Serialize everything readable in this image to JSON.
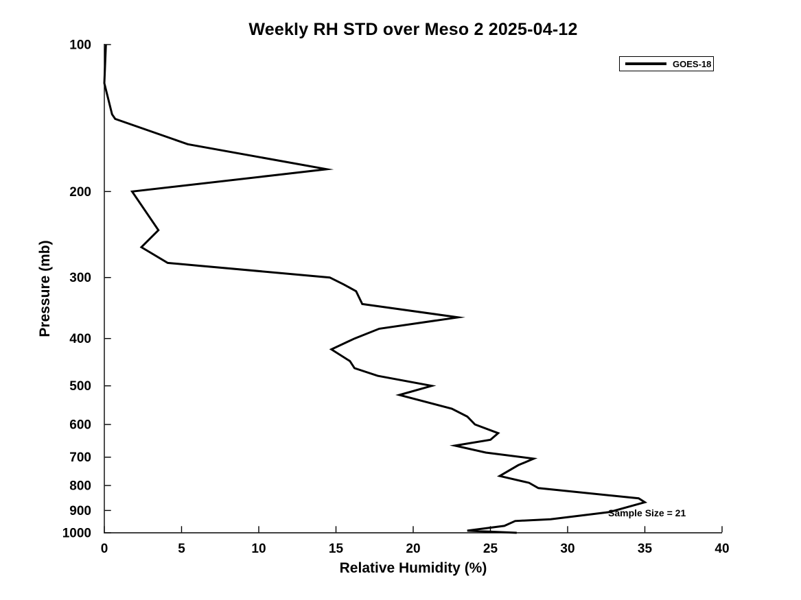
{
  "figure": {
    "title": "Weekly RH STD over Meso 2 2025-04-12",
    "xlabel": "Relative Humidity (%)",
    "ylabel": "Pressure (mb)",
    "annotation": "Sample Size = 21",
    "legend": {
      "label": "GOES-18"
    },
    "colors": {
      "line": "#000000",
      "axis": "#000000",
      "text": "#000000",
      "background": "#ffffff"
    }
  },
  "chart_data": {
    "type": "line",
    "title": "Weekly RH STD over Meso 2 2025-04-12",
    "xlabel": "Relative Humidity (%)",
    "ylabel": "Pressure (mb)",
    "xlim": [
      0,
      40
    ],
    "ylim": [
      100,
      1000
    ],
    "x_ticks": [
      0,
      5,
      10,
      15,
      20,
      25,
      30,
      35,
      40
    ],
    "y_ticks": [
      100,
      200,
      300,
      400,
      500,
      600,
      700,
      800,
      900,
      1000
    ],
    "y_scale": "log",
    "y_inverted": true,
    "grid": false,
    "legend_position": "top-right",
    "annotations": [
      {
        "text": "Sample Size = 21",
        "rh": 32.6,
        "pressure": 925
      }
    ],
    "series": [
      {
        "name": "GOES-18",
        "color": "#000000",
        "point_format": [
          "rh_std_percent",
          "pressure_mb"
        ],
        "points": [
          [
            0.1,
            100
          ],
          [
            0.0,
            120
          ],
          [
            0.5,
            139
          ],
          [
            0.7,
            142
          ],
          [
            5.4,
            160
          ],
          [
            14.4,
            180
          ],
          [
            1.8,
            200
          ],
          [
            3.5,
            240
          ],
          [
            2.4,
            260
          ],
          [
            4.1,
            280
          ],
          [
            14.6,
            300
          ],
          [
            15.5,
            310
          ],
          [
            16.3,
            320
          ],
          [
            16.7,
            340
          ],
          [
            22.9,
            362
          ],
          [
            17.8,
            382
          ],
          [
            16.2,
            400
          ],
          [
            14.7,
            421
          ],
          [
            15.9,
            445
          ],
          [
            16.2,
            460
          ],
          [
            17.7,
            477
          ],
          [
            21.2,
            500
          ],
          [
            19.1,
            522
          ],
          [
            22.5,
            557
          ],
          [
            23.5,
            578
          ],
          [
            24.0,
            600
          ],
          [
            25.5,
            625
          ],
          [
            25.0,
            645
          ],
          [
            22.7,
            663
          ],
          [
            24.7,
            685
          ],
          [
            27.8,
            705
          ],
          [
            26.8,
            727
          ],
          [
            25.6,
            765
          ],
          [
            27.5,
            790
          ],
          [
            28.1,
            810
          ],
          [
            34.6,
            850
          ],
          [
            35.0,
            866
          ],
          [
            32.7,
            907
          ],
          [
            28.9,
            938
          ],
          [
            26.6,
            946
          ],
          [
            25.9,
            968
          ],
          [
            23.5,
            990
          ],
          [
            26.7,
            1000
          ]
        ]
      }
    ]
  }
}
